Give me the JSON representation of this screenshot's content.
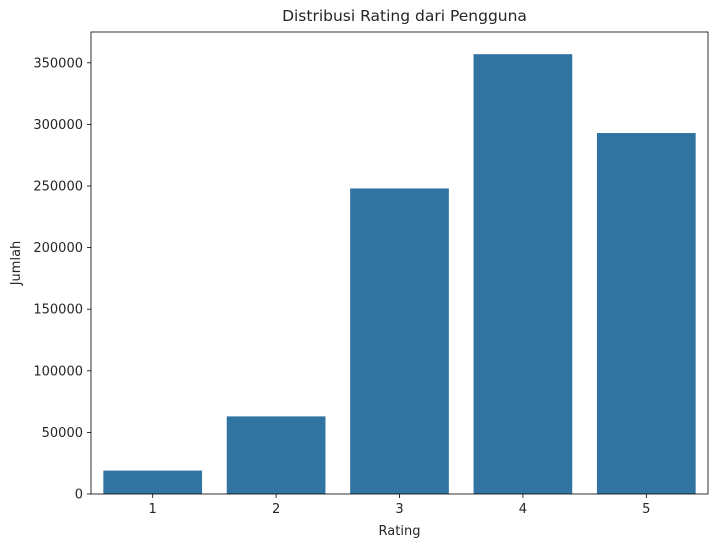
{
  "chart_data": {
    "type": "bar",
    "title": "Distribusi Rating dari Pengguna",
    "xlabel": "Rating",
    "ylabel": "Jumlah",
    "categories": [
      "1",
      "2",
      "3",
      "4",
      "5"
    ],
    "values": [
      19000,
      63000,
      248000,
      357000,
      293000
    ],
    "ylim": [
      0,
      375000
    ],
    "yticks": [
      0,
      50000,
      100000,
      150000,
      200000,
      250000,
      300000,
      350000
    ],
    "bar_color": "#3274a1",
    "grid": false,
    "legend": "none"
  }
}
